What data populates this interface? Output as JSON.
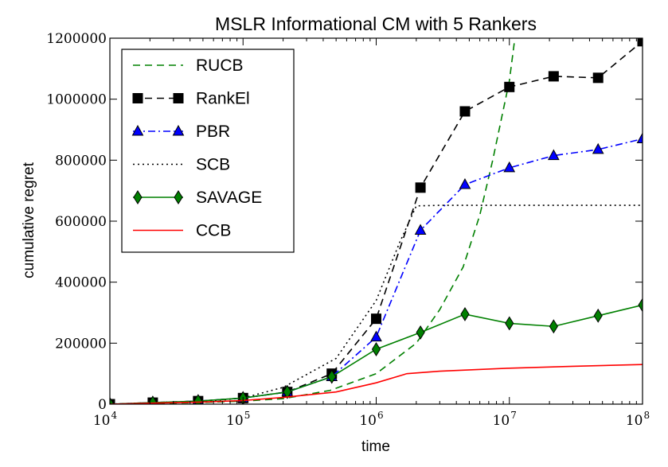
{
  "chart_data": {
    "type": "line",
    "title": "MSLR Informational CM with 5 Rankers",
    "xlabel": "time",
    "ylabel": "cumulative regret",
    "xscale": "log",
    "xlim": [
      10000,
      100000000
    ],
    "ylim": [
      0,
      1200000
    ],
    "x_ticks": [
      {
        "value": 10000,
        "base": "10",
        "exp": "4"
      },
      {
        "value": 100000,
        "base": "10",
        "exp": "5"
      },
      {
        "value": 1000000,
        "base": "10",
        "exp": "6"
      },
      {
        "value": 10000000,
        "base": "10",
        "exp": "7"
      },
      {
        "value": 100000000,
        "base": "10",
        "exp": "8"
      }
    ],
    "y_ticks": [
      {
        "value": 0,
        "label": "0"
      },
      {
        "value": 200000,
        "label": "200000"
      },
      {
        "value": 400000,
        "label": "400000"
      },
      {
        "value": 600000,
        "label": "600000"
      },
      {
        "value": 800000,
        "label": "800000"
      },
      {
        "value": 1000000,
        "label": "1000000"
      },
      {
        "value": 1200000,
        "label": "1200000"
      }
    ],
    "legend_position": "top-left",
    "series": [
      {
        "name": "RUCB",
        "color": "#008000",
        "dash": "dashed",
        "marker": "none",
        "x": [
          10000,
          20000,
          45000,
          100000,
          200000,
          450000,
          1000000,
          2000000,
          3000000,
          4500000,
          6000000,
          7500000,
          10000000,
          11000000
        ],
        "y": [
          0,
          2000,
          5000,
          10000,
          18000,
          45000,
          100000,
          200000,
          310000,
          450000,
          620000,
          800000,
          1060000,
          1200000
        ]
      },
      {
        "name": "RankEl",
        "color": "#000000",
        "dash": "dashed",
        "marker": "square",
        "x": [
          10000,
          21000,
          46000,
          100000,
          215000,
          464000,
          1000000,
          2150000,
          4640000,
          10000000,
          21500000,
          46400000,
          100000000
        ],
        "y": [
          0,
          5000,
          10000,
          20000,
          40000,
          100000,
          280000,
          710000,
          960000,
          1040000,
          1075000,
          1070000,
          1190000
        ]
      },
      {
        "name": "PBR",
        "color": "#0000ff",
        "dash": "dashdot",
        "marker": "triangle",
        "x": [
          10000,
          21000,
          46000,
          100000,
          215000,
          464000,
          1000000,
          2150000,
          4640000,
          10000000,
          21500000,
          46400000,
          100000000
        ],
        "y": [
          0,
          5000,
          10000,
          20000,
          40000,
          90000,
          220000,
          570000,
          720000,
          775000,
          815000,
          835000,
          870000
        ]
      },
      {
        "name": "SCB",
        "color": "#000000",
        "dash": "dotted",
        "marker": "none",
        "x": [
          10000,
          20000,
          50000,
          100000,
          200000,
          500000,
          1000000,
          1500000,
          2000000,
          3000000,
          10000000,
          100000000
        ],
        "y": [
          0,
          3000,
          8000,
          20000,
          55000,
          150000,
          340000,
          530000,
          650000,
          652000,
          652000,
          652000
        ]
      },
      {
        "name": "SAVAGE",
        "color": "#008000",
        "dash": "solid",
        "marker": "diamond",
        "x": [
          10000,
          21000,
          46000,
          100000,
          215000,
          464000,
          1000000,
          2150000,
          4640000,
          10000000,
          21500000,
          46400000,
          100000000
        ],
        "y": [
          0,
          5000,
          10000,
          20000,
          40000,
          90000,
          180000,
          235000,
          295000,
          265000,
          255000,
          290000,
          325000
        ]
      },
      {
        "name": "CCB",
        "color": "#ff0000",
        "dash": "solid",
        "marker": "none",
        "x": [
          10000,
          20000,
          50000,
          100000,
          200000,
          500000,
          1000000,
          1700000,
          3000000,
          10000000,
          30000000,
          100000000
        ],
        "y": [
          0,
          3000,
          7000,
          12000,
          22000,
          40000,
          70000,
          100000,
          108000,
          118000,
          124000,
          130000
        ]
      }
    ]
  }
}
